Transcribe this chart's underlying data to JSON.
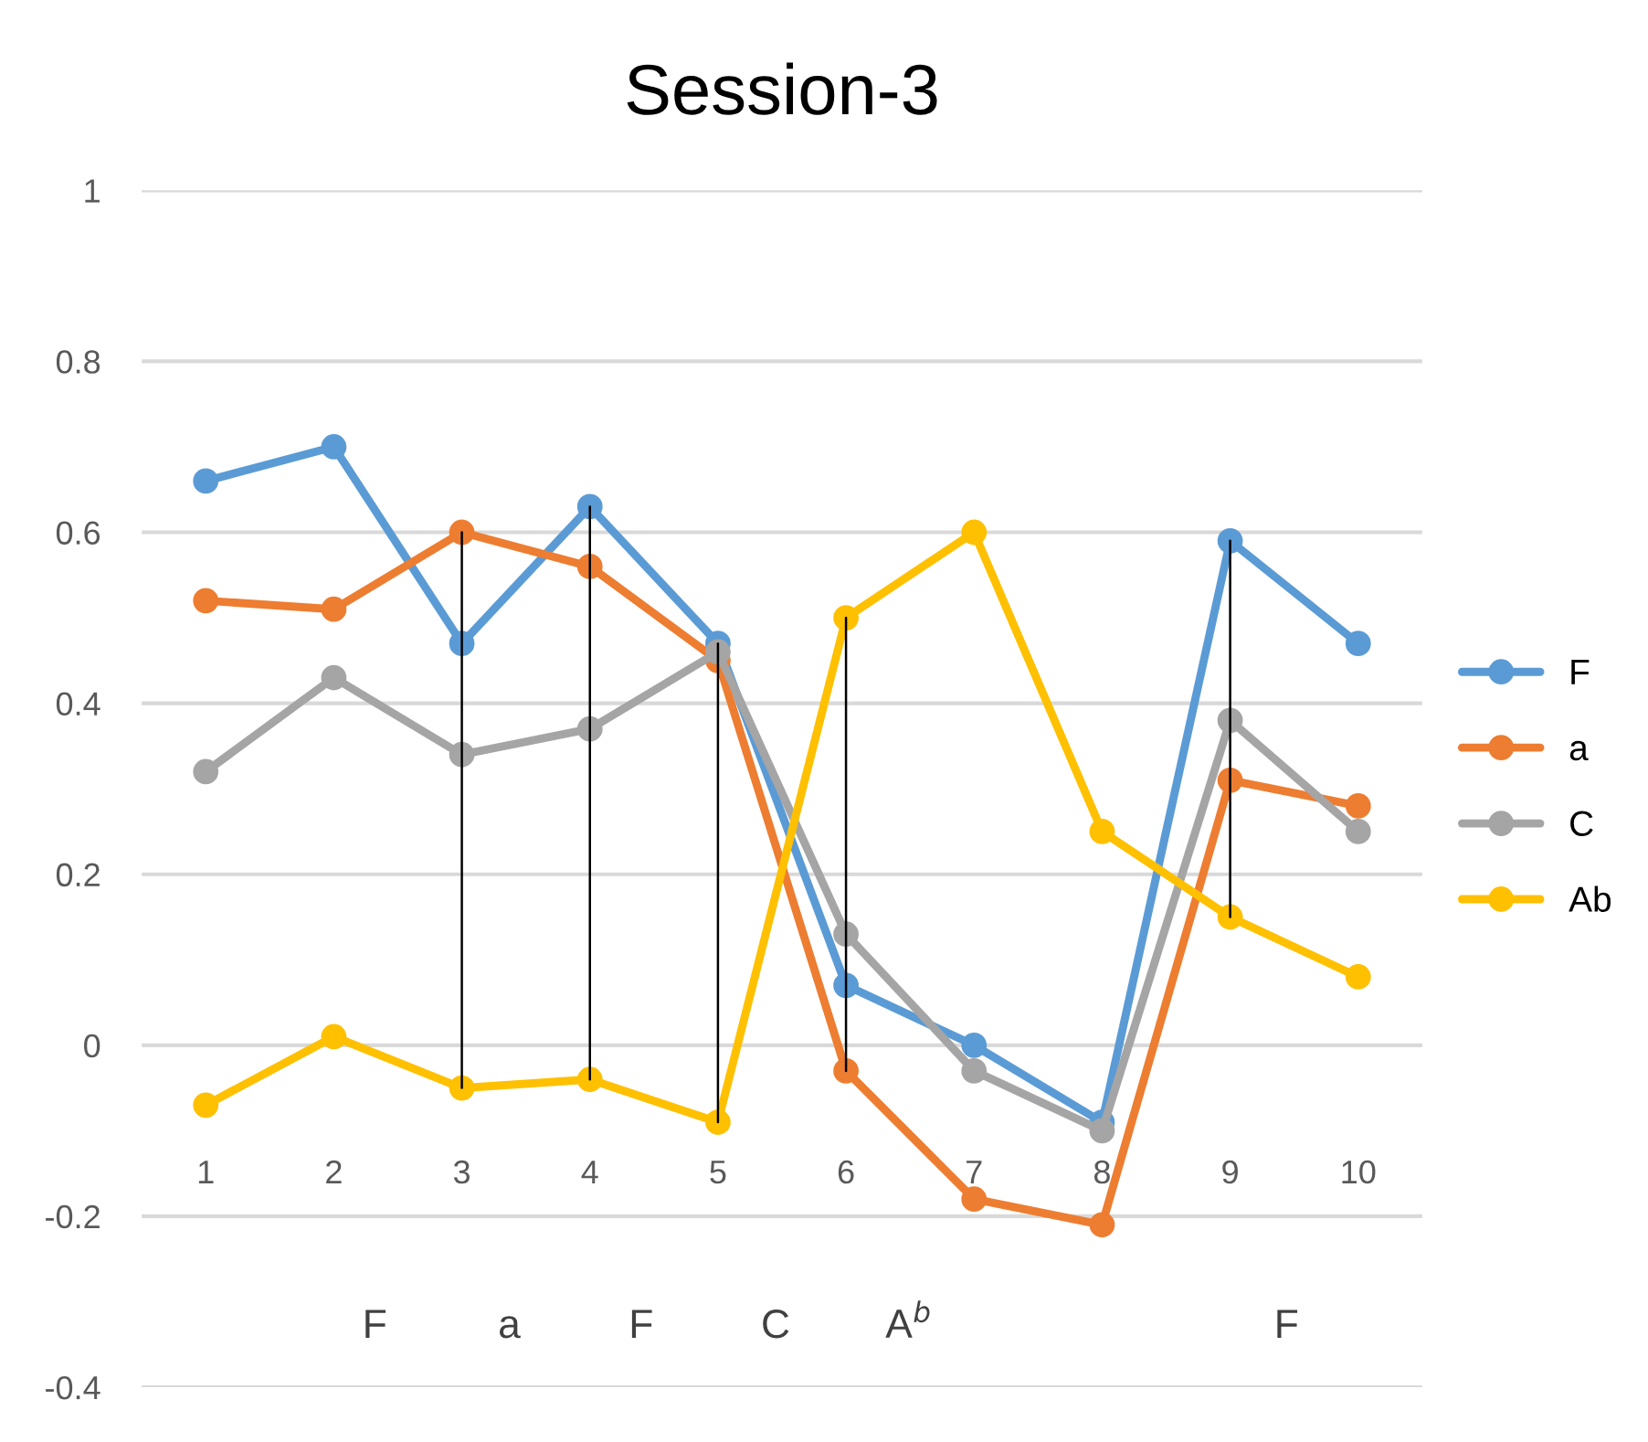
{
  "chart_data": {
    "type": "line",
    "title": "Session-3",
    "categories": [
      "1",
      "2",
      "3",
      "4",
      "5",
      "6",
      "7",
      "8",
      "9",
      "10"
    ],
    "series": [
      {
        "name": "F",
        "color": "#5b9bd5",
        "values": [
          0.66,
          0.7,
          0.47,
          0.63,
          0.47,
          0.07,
          0.0,
          -0.09,
          0.59,
          0.47
        ]
      },
      {
        "name": "a",
        "color": "#ed7d31",
        "values": [
          0.52,
          0.51,
          0.6,
          0.56,
          0.45,
          -0.03,
          -0.18,
          -0.21,
          0.31,
          0.28
        ]
      },
      {
        "name": "C",
        "color": "#a5a5a5",
        "values": [
          0.32,
          0.43,
          0.34,
          0.37,
          0.46,
          0.13,
          -0.03,
          -0.1,
          0.38,
          0.25
        ]
      },
      {
        "name": "Ab",
        "color": "#ffc000",
        "values": [
          -0.07,
          0.01,
          -0.05,
          -0.04,
          -0.09,
          0.5,
          0.6,
          0.25,
          0.15,
          0.08
        ]
      },
      {
        "type": "line",
        "color": "#000000",
        "marker": "none",
        "x": [
          "3",
          "3"
        ],
        "values": [
          0.6,
          -0.05
        ]
      },
      {
        "type": "line",
        "color": "#000000",
        "marker": "none",
        "x": [
          "4",
          "4"
        ],
        "values": [
          0.63,
          -0.04
        ]
      },
      {
        "type": "line",
        "color": "#000000",
        "marker": "none",
        "x": [
          "5",
          "5"
        ],
        "values": [
          0.47,
          -0.09
        ]
      },
      {
        "type": "line",
        "color": "#000000",
        "marker": "none",
        "x": [
          "6",
          "6"
        ],
        "values": [
          0.5,
          -0.03
        ]
      },
      {
        "type": "line",
        "color": "#000000",
        "marker": "none",
        "x": [
          "9",
          "9"
        ],
        "values": [
          0.59,
          0.15
        ]
      }
    ],
    "ylim": [
      -0.4,
      1
    ],
    "yticks": [
      -0.4,
      -0.2,
      0,
      0.2,
      0.4,
      0.6,
      0.8,
      1
    ],
    "grid": "y",
    "legend": "right",
    "marker": "circle",
    "annotations": [
      "F",
      "a",
      "F",
      "C",
      "A$^{b}$",
      "F"
    ]
  }
}
